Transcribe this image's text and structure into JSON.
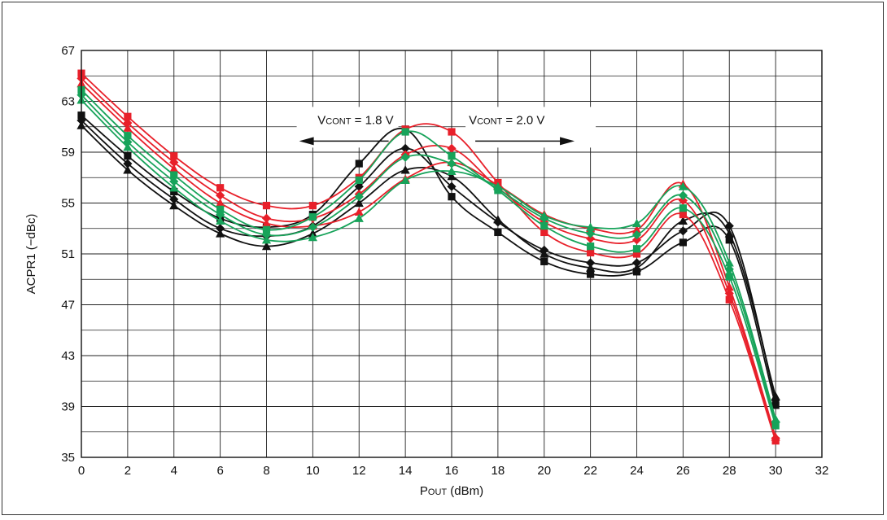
{
  "chart_data": {
    "type": "line",
    "title": "",
    "xlabel": {
      "main": "P",
      "sub": "OUT",
      "unit": " (dBm)"
    },
    "ylabel": "ACPR1 (−dBc)",
    "xlim": [
      0,
      32
    ],
    "ylim": [
      35,
      67
    ],
    "xticks": [
      0,
      2,
      4,
      6,
      8,
      10,
      12,
      14,
      16,
      18,
      20,
      22,
      24,
      26,
      28,
      30,
      32
    ],
    "yticks": [
      35,
      39,
      43,
      47,
      51,
      55,
      59,
      63,
      67
    ],
    "grid": true,
    "annotations": [
      {
        "id": "vcont18",
        "prefix": "V",
        "sub": "CONT",
        "value": " = 1.8 V",
        "arrow": "left",
        "x": 13.7,
        "y": 61.6
      },
      {
        "id": "vcont20",
        "prefix": "V",
        "sub": "CONT",
        "value": " = 2.0 V",
        "arrow": "right",
        "x": 16.6,
        "y": 61.6
      }
    ],
    "colors": {
      "black": "#111111",
      "red": "#e8202a",
      "green": "#17a35a"
    },
    "series": [
      {
        "color": "black",
        "marker": "square",
        "x": [
          0,
          2,
          4,
          6,
          8,
          10,
          12,
          14,
          16,
          18,
          20,
          22,
          24,
          26,
          28,
          30
        ],
        "values": [
          61.9,
          58.7,
          55.9,
          53.8,
          53.1,
          54.1,
          58.1,
          60.8,
          55.5,
          52.7,
          50.4,
          49.4,
          49.6,
          51.9,
          52.1,
          39.1
        ]
      },
      {
        "color": "black",
        "marker": "diamond",
        "x": [
          0,
          2,
          4,
          6,
          8,
          10,
          12,
          14,
          16,
          18,
          20,
          22,
          24,
          26,
          28,
          30
        ],
        "values": [
          61.5,
          58.1,
          55.3,
          53.0,
          52.4,
          53.2,
          56.3,
          59.3,
          56.3,
          53.5,
          51.3,
          50.3,
          50.3,
          52.8,
          53.2,
          39.5
        ]
      },
      {
        "color": "black",
        "marker": "triangle",
        "x": [
          0,
          2,
          4,
          6,
          8,
          10,
          12,
          14,
          16,
          18,
          20,
          22,
          24,
          26,
          28,
          30
        ],
        "values": [
          61.1,
          57.6,
          54.8,
          52.6,
          51.6,
          52.6,
          55.0,
          57.6,
          57.1,
          53.7,
          51.0,
          49.9,
          49.9,
          53.6,
          52.6,
          39.8
        ]
      },
      {
        "color": "red",
        "marker": "square",
        "x": [
          0,
          2,
          4,
          6,
          8,
          10,
          12,
          14,
          16,
          18,
          20,
          22,
          24,
          26,
          28,
          30
        ],
        "values": [
          65.2,
          61.8,
          58.7,
          56.2,
          54.8,
          54.8,
          57.0,
          60.8,
          60.6,
          56.6,
          52.7,
          51.1,
          51.0,
          54.1,
          47.4,
          36.3
        ]
      },
      {
        "color": "red",
        "marker": "diamond",
        "x": [
          0,
          2,
          4,
          6,
          8,
          10,
          12,
          14,
          16,
          18,
          20,
          22,
          24,
          26,
          28,
          30
        ],
        "values": [
          64.8,
          61.3,
          58.2,
          55.6,
          53.8,
          53.8,
          55.7,
          58.8,
          59.3,
          56.2,
          53.5,
          52.2,
          52.1,
          55.2,
          47.9,
          36.5
        ]
      },
      {
        "color": "red",
        "marker": "triangle",
        "x": [
          0,
          2,
          4,
          6,
          8,
          10,
          12,
          14,
          16,
          18,
          20,
          22,
          24,
          26,
          28,
          30
        ],
        "values": [
          64.4,
          60.9,
          57.7,
          55.0,
          53.4,
          53.2,
          54.3,
          56.9,
          58.2,
          56.4,
          54.1,
          53.0,
          52.9,
          56.5,
          48.4,
          36.6
        ]
      },
      {
        "color": "green",
        "marker": "square",
        "x": [
          0,
          2,
          4,
          6,
          8,
          10,
          12,
          14,
          16,
          18,
          20,
          22,
          24,
          26,
          28,
          30
        ],
        "values": [
          63.9,
          60.3,
          57.2,
          54.5,
          52.9,
          53.9,
          56.8,
          60.6,
          58.7,
          56.0,
          53.2,
          51.6,
          51.4,
          54.6,
          49.2,
          37.5
        ]
      },
      {
        "color": "green",
        "marker": "diamond",
        "x": [
          0,
          2,
          4,
          6,
          8,
          10,
          12,
          14,
          16,
          18,
          20,
          22,
          24,
          26,
          28,
          30
        ],
        "values": [
          63.5,
          59.8,
          56.7,
          54.1,
          52.5,
          53.1,
          55.5,
          58.6,
          58.1,
          56.1,
          53.8,
          52.6,
          52.5,
          55.6,
          49.8,
          37.8
        ]
      },
      {
        "color": "green",
        "marker": "triangle",
        "x": [
          0,
          2,
          4,
          6,
          8,
          10,
          12,
          14,
          16,
          18,
          20,
          22,
          24,
          26,
          28,
          30
        ],
        "values": [
          63.1,
          59.4,
          56.2,
          53.6,
          52.1,
          52.3,
          53.8,
          56.8,
          57.5,
          56.3,
          54.0,
          53.1,
          53.4,
          56.3,
          50.3,
          38.0
        ]
      }
    ]
  }
}
